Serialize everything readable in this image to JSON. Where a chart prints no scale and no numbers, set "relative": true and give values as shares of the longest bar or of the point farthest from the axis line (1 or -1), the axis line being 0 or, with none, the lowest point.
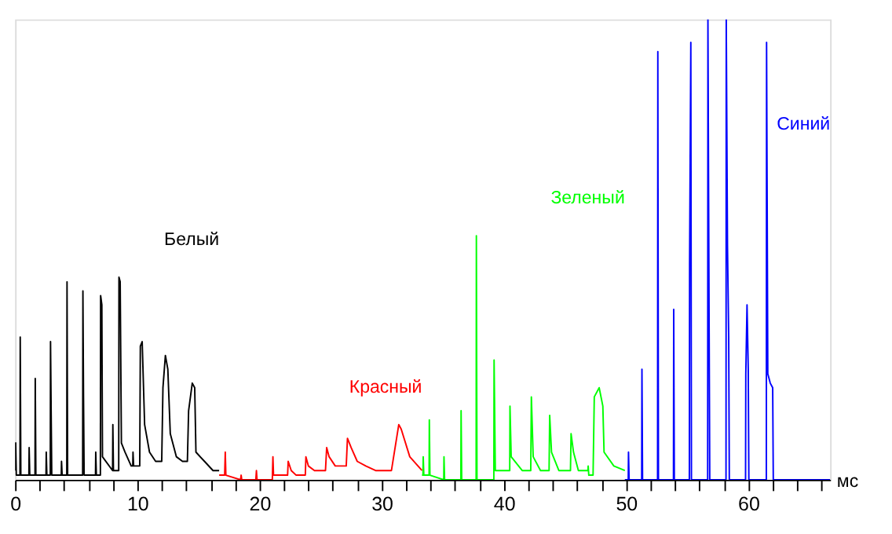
{
  "chart_data": {
    "type": "line",
    "relative": true,
    "xlabel": "мс",
    "xlim": [
      0,
      66.7
    ],
    "xticks": [
      0,
      {
        "value": 2,
        "label": null
      },
      {
        "value": 4,
        "label": null
      },
      {
        "value": 6,
        "label": null
      },
      {
        "value": 8,
        "label": null
      },
      10,
      {
        "value": 12,
        "label": null
      },
      {
        "value": 14,
        "label": null
      },
      {
        "value": 16,
        "label": null
      },
      {
        "value": 18,
        "label": null
      },
      20,
      {
        "value": 22,
        "label": null
      },
      {
        "value": 24,
        "label": null
      },
      {
        "value": 26,
        "label": null
      },
      {
        "value": 28,
        "label": null
      },
      30,
      {
        "value": 32,
        "label": null
      },
      {
        "value": 34,
        "label": null
      },
      {
        "value": 36,
        "label": null
      },
      {
        "value": 38,
        "label": null
      },
      40,
      {
        "value": 42,
        "label": null
      },
      {
        "value": 44,
        "label": null
      },
      {
        "value": 46,
        "label": null
      },
      {
        "value": 48,
        "label": null
      },
      50,
      {
        "value": 52,
        "label": null
      },
      {
        "value": 54,
        "label": null
      },
      {
        "value": 56,
        "label": null
      },
      {
        "value": 58,
        "label": null
      },
      60,
      {
        "value": 62,
        "label": null
      },
      {
        "value": 64,
        "label": null
      },
      {
        "value": 66,
        "label": null
      }
    ],
    "grid": false,
    "legend": false,
    "tick_labels": "x",
    "series": [
      {
        "name": "Белый",
        "color": "#000000",
        "x": [
          0,
          0.05,
          0.1,
          0.4,
          0.42,
          0.47,
          1.13,
          1.15,
          1.2,
          1.63,
          1.65,
          1.7,
          2.53,
          2.55,
          2.6,
          2.88,
          2.9,
          2.95,
          3.0,
          3.78,
          3.8,
          3.85,
          4.23,
          4.25,
          4.3,
          5.53,
          5.55,
          5.6,
          5.65,
          6.58,
          6.6,
          6.65,
          6.98,
          7.0,
          7.1,
          7.15,
          7.98,
          8.0,
          8.05,
          8.48,
          8.5,
          8.6,
          8.7,
          9.0,
          9.5,
          9.63,
          9.65,
          9.7,
          10.2,
          10.25,
          10.4,
          10.6,
          11.0,
          11.5,
          12.0,
          12.1,
          12.3,
          12.5,
          12.7,
          13.2,
          13.7,
          14.1,
          14.2,
          14.5,
          14.7,
          14.8,
          15.5,
          16.2,
          16.7
        ],
        "values": [
          0.02,
          0.08,
          0.01,
          0.01,
          0.31,
          0.01,
          0.01,
          0.07,
          0.01,
          0.01,
          0.22,
          0.01,
          0.01,
          0.06,
          0.01,
          0.01,
          0.3,
          0.15,
          0.01,
          0.01,
          0.04,
          0.01,
          0.01,
          0.43,
          0.01,
          0.01,
          0.41,
          0.18,
          0.01,
          0.01,
          0.06,
          0.01,
          0.01,
          0.4,
          0.38,
          0.05,
          0.02,
          0.12,
          0.02,
          0.02,
          0.44,
          0.43,
          0.08,
          0.06,
          0.03,
          0.03,
          0.06,
          0.03,
          0.03,
          0.29,
          0.3,
          0.12,
          0.06,
          0.04,
          0.04,
          0.2,
          0.27,
          0.24,
          0.1,
          0.05,
          0.04,
          0.04,
          0.15,
          0.21,
          0.2,
          0.06,
          0.04,
          0.02,
          0.02
        ]
      },
      {
        "name": "Красный",
        "color": "#ff0000",
        "x": [
          16.7,
          17.15,
          17.2,
          17.25,
          18.45,
          18.5,
          18.55,
          19.7,
          19.75,
          19.8,
          21.05,
          21.1,
          21.15,
          22.3,
          22.35,
          22.6,
          23.0,
          23.75,
          23.8,
          24.0,
          24.5,
          25.4,
          25.5,
          25.7,
          26.2,
          27.1,
          27.2,
          27.5,
          28.0,
          28.7,
          29.5,
          30.8,
          31.4,
          31.6,
          32.3,
          33.3
        ],
        "values": [
          0.01,
          0.01,
          0.06,
          0.01,
          0,
          0.01,
          0,
          0,
          0.02,
          0,
          0,
          0.05,
          0.01,
          0.01,
          0.04,
          0.02,
          0.01,
          0.01,
          0.05,
          0.03,
          0.02,
          0.02,
          0.07,
          0.05,
          0.03,
          0.03,
          0.09,
          0.07,
          0.04,
          0.03,
          0.02,
          0.02,
          0.12,
          0.11,
          0.05,
          0.02
        ]
      },
      {
        "name": "Зеленый",
        "color": "#00ff00",
        "x": [
          33.3,
          33.38,
          33.4,
          33.45,
          33.88,
          33.9,
          33.95,
          35.08,
          35.1,
          35.15,
          36.48,
          36.5,
          36.55,
          37.73,
          37.75,
          37.8,
          39.18,
          39.2,
          39.3,
          40.48,
          40.5,
          40.6,
          41.5,
          42.2,
          42.25,
          42.4,
          43.0,
          43.7,
          43.75,
          43.9,
          44.5,
          45.45,
          45.5,
          45.7,
          46.1,
          46.88,
          46.9,
          46.95,
          47.3,
          47.4,
          47.8,
          48.1,
          48.2,
          49.0,
          49.9
        ],
        "values": [
          0.01,
          0.01,
          0.05,
          0.01,
          0.01,
          0.13,
          0.01,
          0,
          0.05,
          0,
          0,
          0.15,
          0,
          0,
          0.53,
          0,
          0,
          0.26,
          0.02,
          0.02,
          0.16,
          0.05,
          0.02,
          0.02,
          0.18,
          0.05,
          0.02,
          0.02,
          0.14,
          0.06,
          0.02,
          0.02,
          0.1,
          0.06,
          0.02,
          0.02,
          0.03,
          0.01,
          0.01,
          0.18,
          0.2,
          0.16,
          0.06,
          0.03,
          0.02
        ]
      },
      {
        "name": "Синий",
        "color": "#0000ff",
        "x": [
          49.9,
          50.18,
          50.2,
          50.25,
          51.28,
          51.3,
          51.35,
          52.58,
          52.6,
          52.65,
          53.88,
          53.9,
          53.95,
          55.18,
          55.2,
          55.3,
          55.35,
          56.68,
          56.7,
          56.8,
          56.85,
          58.18,
          58.2,
          58.3,
          58.4,
          58.45,
          59.78,
          59.8,
          59.9,
          60.0,
          60.05,
          61.48,
          61.5,
          61.6,
          61.8,
          62.0,
          62.05,
          66.7
        ],
        "values": [
          0,
          0,
          0.06,
          0,
          0,
          0.24,
          0,
          0,
          0.93,
          0,
          0,
          0.37,
          0,
          0,
          0.47,
          0.95,
          0,
          0,
          1,
          0.32,
          0,
          0,
          1,
          0.51,
          0.31,
          0,
          0,
          0.23,
          0.38,
          0.24,
          0,
          0,
          0.95,
          0.23,
          0.21,
          0.2,
          0,
          0
        ]
      }
    ]
  }
}
